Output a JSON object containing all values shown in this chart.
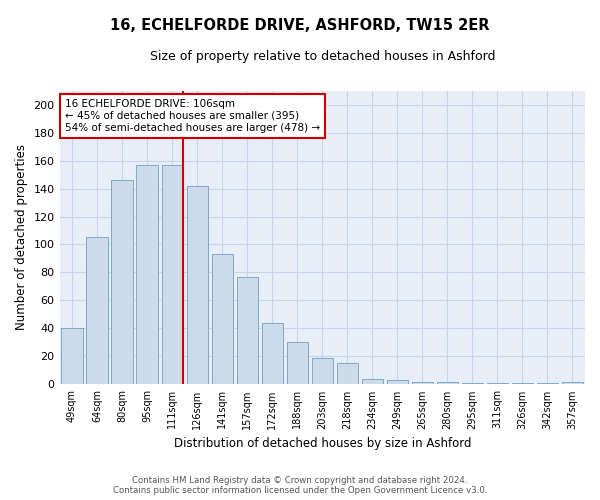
{
  "title": "16, ECHELFORDE DRIVE, ASHFORD, TW15 2ER",
  "subtitle": "Size of property relative to detached houses in Ashford",
  "xlabel": "Distribution of detached houses by size in Ashford",
  "ylabel": "Number of detached properties",
  "categories": [
    "49sqm",
    "64sqm",
    "80sqm",
    "95sqm",
    "111sqm",
    "126sqm",
    "141sqm",
    "157sqm",
    "172sqm",
    "188sqm",
    "203sqm",
    "218sqm",
    "234sqm",
    "249sqm",
    "265sqm",
    "280sqm",
    "295sqm",
    "311sqm",
    "326sqm",
    "342sqm",
    "357sqm"
  ],
  "values": [
    40,
    105,
    146,
    157,
    157,
    142,
    93,
    77,
    44,
    30,
    19,
    15,
    4,
    3,
    2,
    2,
    1,
    1,
    1,
    1,
    2
  ],
  "bar_color": "#ccdaea",
  "bar_edge_color": "#7baacb",
  "vline_color": "#cc0000",
  "annotation_line1": "16 ECHELFORDE DRIVE: 106sqm",
  "annotation_line2": "← 45% of detached houses are smaller (395)",
  "annotation_line3": "54% of semi-detached houses are larger (478) →",
  "annotation_box_color": "#ffffff",
  "annotation_box_edge": "#cc0000",
  "ylim": [
    0,
    210
  ],
  "yticks": [
    0,
    20,
    40,
    60,
    80,
    100,
    120,
    140,
    160,
    180,
    200
  ],
  "grid_color": "#c8d4e8",
  "background_color": "#e8eef8",
  "footer1": "Contains HM Land Registry data © Crown copyright and database right 2024.",
  "footer2": "Contains public sector information licensed under the Open Government Licence v3.0."
}
